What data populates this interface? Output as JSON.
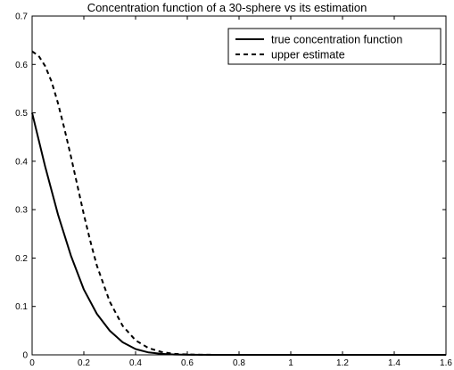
{
  "chart_data": {
    "type": "line",
    "title": "Concentration function of a 30-sphere vs its estimation",
    "xlabel": "",
    "ylabel": "",
    "xlim": [
      0,
      1.6
    ],
    "ylim": [
      0,
      0.7
    ],
    "grid": false,
    "legend_position": "top-right",
    "x_ticks": [
      "0",
      "0.2",
      "0.4",
      "0.6",
      "0.8",
      "1",
      "1.2",
      "1.4",
      "1.6"
    ],
    "y_ticks": [
      "0",
      "0.1",
      "0.2",
      "0.3",
      "0.4",
      "0.5",
      "0.6",
      "0.7"
    ],
    "series": [
      {
        "name": "true concentration function",
        "style": "solid",
        "x": [
          0,
          0.05,
          0.1,
          0.15,
          0.2,
          0.25,
          0.3,
          0.35,
          0.4,
          0.45,
          0.5,
          0.55,
          0.6,
          0.7,
          0.8,
          1.0,
          1.2,
          1.4,
          1.6
        ],
        "y": [
          0.5,
          0.39,
          0.29,
          0.205,
          0.135,
          0.085,
          0.05,
          0.026,
          0.012,
          0.005,
          0.002,
          0.0008,
          0.0003,
          0,
          0,
          0,
          0,
          0,
          0
        ]
      },
      {
        "name": "upper estimate",
        "style": "dashed",
        "x": [
          0,
          0.025,
          0.05,
          0.075,
          0.1,
          0.125,
          0.15,
          0.175,
          0.2,
          0.225,
          0.25,
          0.3,
          0.35,
          0.4,
          0.45,
          0.5,
          0.55,
          0.6,
          0.65,
          0.7,
          0.8,
          1.0,
          1.2,
          1.4,
          1.6
        ],
        "y": [
          0.627,
          0.618,
          0.597,
          0.565,
          0.52,
          0.467,
          0.41,
          0.35,
          0.29,
          0.235,
          0.185,
          0.11,
          0.06,
          0.03,
          0.014,
          0.006,
          0.002,
          0.0008,
          0.0003,
          0.0001,
          0,
          0,
          0,
          0,
          0
        ]
      }
    ]
  }
}
